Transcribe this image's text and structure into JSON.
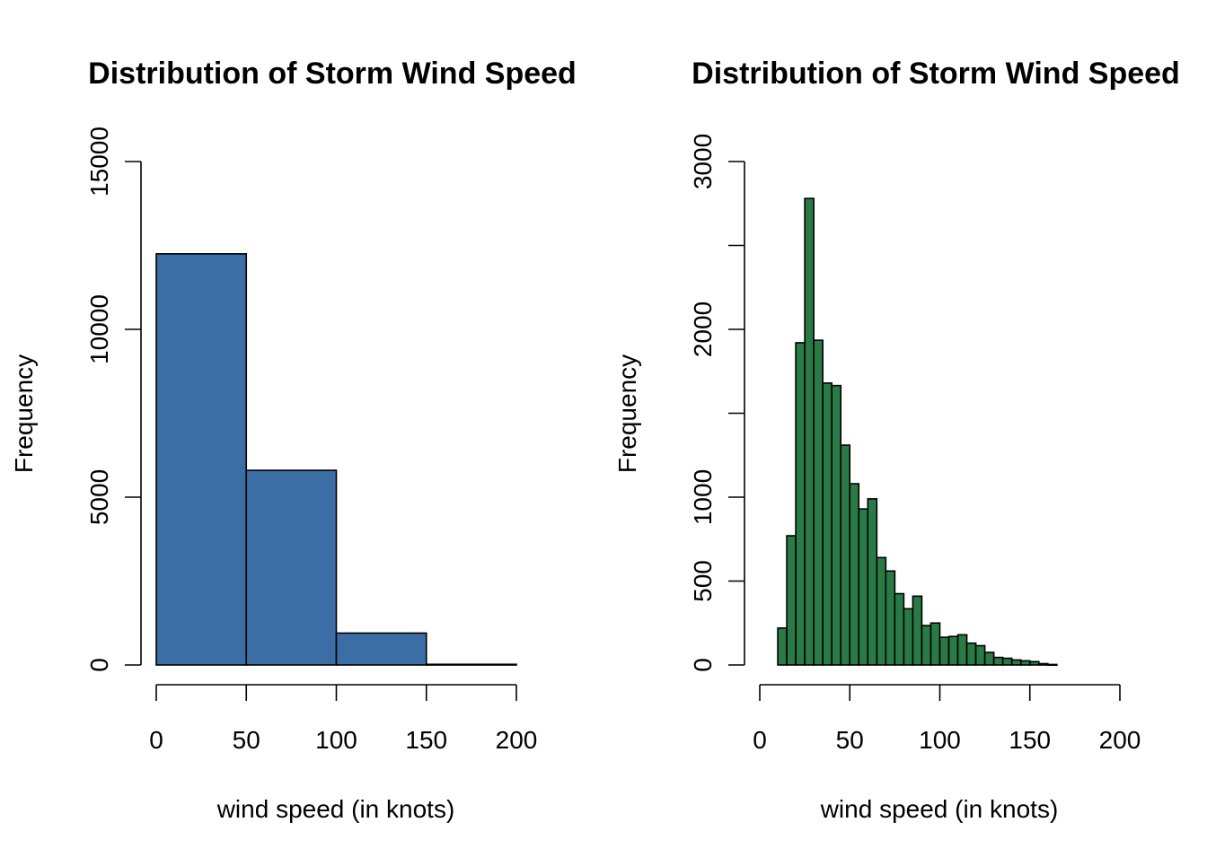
{
  "chart_data": [
    {
      "type": "bar",
      "title": "Distribution of Storm Wind Speed",
      "xlabel": "wind speed (in knots)",
      "ylabel": "Frequency",
      "bar_color": "#3a6ea5",
      "bins": [
        {
          "x0": 0,
          "x1": 50,
          "count": 12250
        },
        {
          "x0": 50,
          "x1": 100,
          "count": 5800
        },
        {
          "x0": 100,
          "x1": 150,
          "count": 950
        },
        {
          "x0": 150,
          "x1": 200,
          "count": 20
        }
      ],
      "xlim": [
        0,
        200
      ],
      "ylim": [
        0,
        15000
      ],
      "xticks": [
        0,
        50,
        100,
        150,
        200
      ],
      "yticks": [
        0,
        5000,
        10000,
        15000
      ],
      "ytick_labels": [
        "0",
        "5000",
        "10000",
        "15000"
      ],
      "grid": false
    },
    {
      "type": "bar",
      "title": "Distribution of Storm Wind Speed",
      "xlabel": "wind speed (in knots)",
      "ylabel": "Frequency",
      "bar_color": "#2a7a45",
      "bins": [
        {
          "x0": 10,
          "x1": 15,
          "count": 220
        },
        {
          "x0": 15,
          "x1": 20,
          "count": 770
        },
        {
          "x0": 20,
          "x1": 25,
          "count": 1920
        },
        {
          "x0": 25,
          "x1": 30,
          "count": 2780
        },
        {
          "x0": 30,
          "x1": 35,
          "count": 1935
        },
        {
          "x0": 35,
          "x1": 40,
          "count": 1680
        },
        {
          "x0": 40,
          "x1": 45,
          "count": 1665
        },
        {
          "x0": 45,
          "x1": 50,
          "count": 1310
        },
        {
          "x0": 50,
          "x1": 55,
          "count": 1080
        },
        {
          "x0": 55,
          "x1": 60,
          "count": 930
        },
        {
          "x0": 60,
          "x1": 65,
          "count": 990
        },
        {
          "x0": 65,
          "x1": 70,
          "count": 640
        },
        {
          "x0": 70,
          "x1": 75,
          "count": 560
        },
        {
          "x0": 75,
          "x1": 80,
          "count": 425
        },
        {
          "x0": 80,
          "x1": 85,
          "count": 335
        },
        {
          "x0": 85,
          "x1": 90,
          "count": 410
        },
        {
          "x0": 90,
          "x1": 95,
          "count": 235
        },
        {
          "x0": 95,
          "x1": 100,
          "count": 250
        },
        {
          "x0": 100,
          "x1": 105,
          "count": 165
        },
        {
          "x0": 105,
          "x1": 110,
          "count": 170
        },
        {
          "x0": 110,
          "x1": 115,
          "count": 180
        },
        {
          "x0": 115,
          "x1": 120,
          "count": 130
        },
        {
          "x0": 120,
          "x1": 125,
          "count": 115
        },
        {
          "x0": 125,
          "x1": 130,
          "count": 75
        },
        {
          "x0": 130,
          "x1": 135,
          "count": 45
        },
        {
          "x0": 135,
          "x1": 140,
          "count": 40
        },
        {
          "x0": 140,
          "x1": 145,
          "count": 30
        },
        {
          "x0": 145,
          "x1": 150,
          "count": 25
        },
        {
          "x0": 150,
          "x1": 155,
          "count": 20
        },
        {
          "x0": 155,
          "x1": 160,
          "count": 8
        },
        {
          "x0": 160,
          "x1": 165,
          "count": 3
        }
      ],
      "xlim": [
        0,
        200
      ],
      "ylim": [
        0,
        3000
      ],
      "xticks": [
        0,
        50,
        100,
        150,
        200
      ],
      "yticks": [
        0,
        500,
        1000,
        1500,
        2000,
        2500,
        3000
      ],
      "ytick_labels": [
        "0",
        "500",
        "1000",
        "",
        "2000",
        "",
        "3000"
      ],
      "grid": false
    }
  ]
}
